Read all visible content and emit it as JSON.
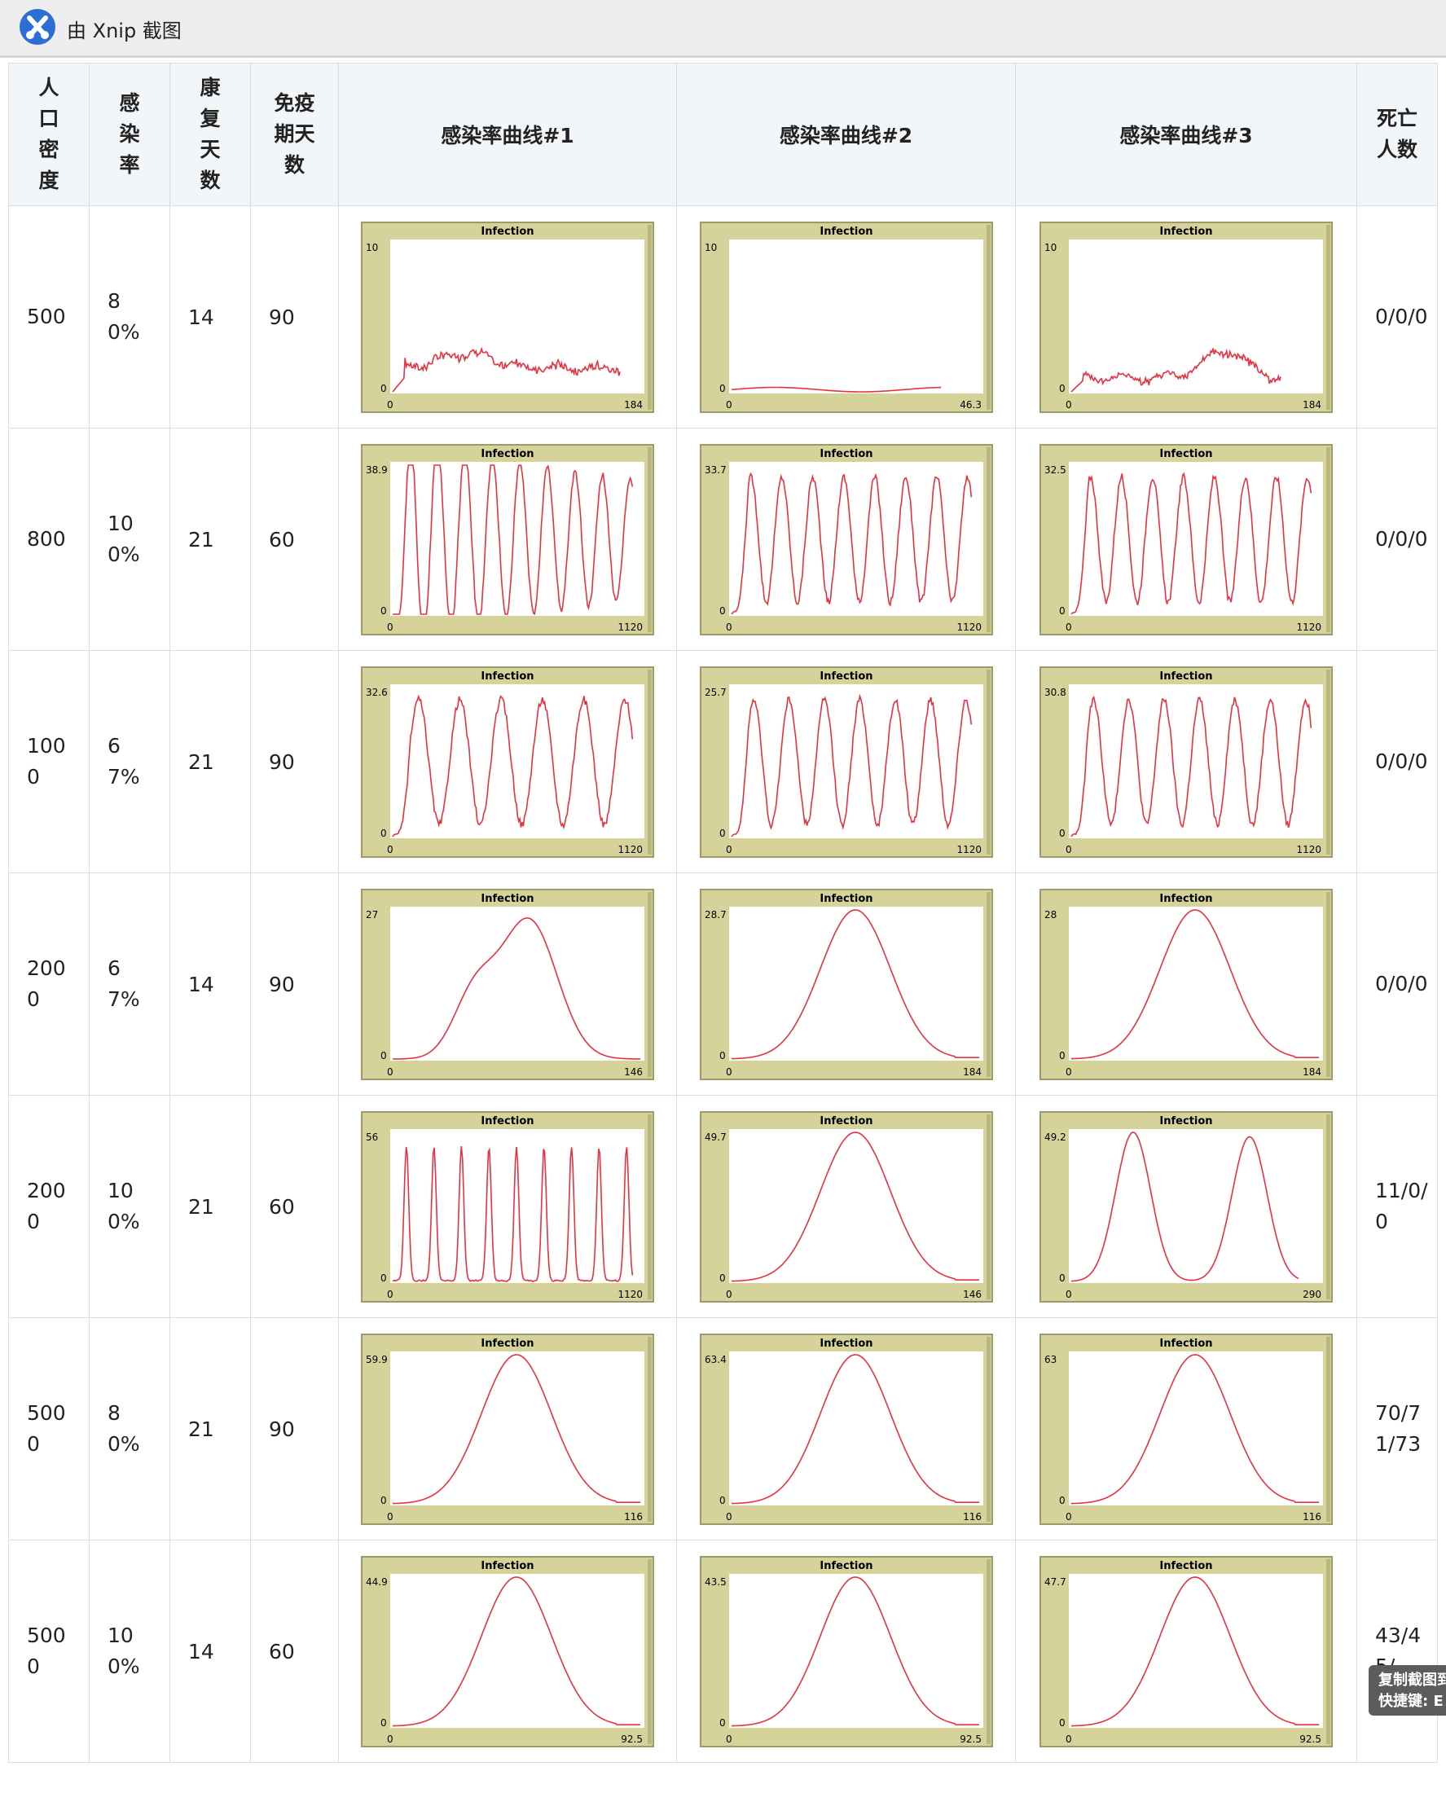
{
  "app": {
    "title": "由 Xnip 截图",
    "icon": "xnip-logo-icon"
  },
  "table": {
    "headers": {
      "density": "人口密度",
      "rate": "感染率",
      "recover": "康复天数",
      "immune": "免疫期天数",
      "curve1": "感染率曲线#1",
      "curve2": "感染率曲线#2",
      "curve3": "感染率曲线#3",
      "deaths": "死亡人数"
    },
    "rows": [
      {
        "density": "500",
        "rate": "80%",
        "recover": "14",
        "immune": "90",
        "deaths": "0/0/0"
      },
      {
        "density": "800",
        "rate": "100%",
        "recover": "21",
        "immune": "60",
        "deaths": "0/0/0"
      },
      {
        "density": "1000",
        "rate": "67%",
        "recover": "21",
        "immune": "90",
        "deaths": "0/0/0"
      },
      {
        "density": "2000",
        "rate": "67%",
        "recover": "14",
        "immune": "90",
        "deaths": "0/0/0"
      },
      {
        "density": "2000",
        "rate": "100%",
        "recover": "21",
        "immune": "60",
        "deaths": "11/0/0"
      },
      {
        "density": "5000",
        "rate": "80%",
        "recover": "21",
        "immune": "90",
        "deaths": "70/71/73"
      },
      {
        "density": "5000",
        "rate": "100%",
        "recover": "14",
        "immune": "60",
        "deaths": "43/45/"
      }
    ]
  },
  "chart_data": [
    {
      "type": "line",
      "title": "Infection",
      "ylim": [
        0,
        10
      ],
      "xlim": [
        0,
        184
      ],
      "shape": "noisy-low",
      "peak": 2.5
    },
    {
      "type": "line",
      "title": "Infection",
      "ylim": [
        0,
        10
      ],
      "xlim": [
        0,
        46.3
      ],
      "shape": "flat",
      "peak": 0.3
    },
    {
      "type": "line",
      "title": "Infection",
      "ylim": [
        0,
        10
      ],
      "xlim": [
        0,
        184
      ],
      "shape": "noisy-low2",
      "peak": 2.8
    },
    {
      "type": "line",
      "title": "Infection",
      "ylim": [
        0,
        38.9
      ],
      "xlim": [
        0,
        1120
      ],
      "shape": "osc-damped",
      "peaks": 9
    },
    {
      "type": "line",
      "title": "Infection",
      "ylim": [
        0,
        33.7
      ],
      "xlim": [
        0,
        1120
      ],
      "shape": "osc",
      "peaks": 8
    },
    {
      "type": "line",
      "title": "Infection",
      "ylim": [
        0,
        32.5
      ],
      "xlim": [
        0,
        1120
      ],
      "shape": "osc",
      "peaks": 8
    },
    {
      "type": "line",
      "title": "Infection",
      "ylim": [
        0,
        32.6
      ],
      "xlim": [
        0,
        1120
      ],
      "shape": "osc",
      "peaks": 6
    },
    {
      "type": "line",
      "title": "Infection",
      "ylim": [
        0,
        25.7
      ],
      "xlim": [
        0,
        1120
      ],
      "shape": "osc",
      "peaks": 7
    },
    {
      "type": "line",
      "title": "Infection",
      "ylim": [
        0,
        30.8
      ],
      "xlim": [
        0,
        1120
      ],
      "shape": "osc",
      "peaks": 7
    },
    {
      "type": "line",
      "title": "Infection",
      "ylim": [
        0,
        27
      ],
      "xlim": [
        0,
        146
      ],
      "shape": "bell-shoulder",
      "peak": 27
    },
    {
      "type": "line",
      "title": "Infection",
      "ylim": [
        0,
        28.7
      ],
      "xlim": [
        0,
        184
      ],
      "shape": "bell",
      "peak": 28.7
    },
    {
      "type": "line",
      "title": "Infection",
      "ylim": [
        0,
        28
      ],
      "xlim": [
        0,
        184
      ],
      "shape": "bell",
      "peak": 28
    },
    {
      "type": "line",
      "title": "Infection",
      "ylim": [
        0,
        56
      ],
      "xlim": [
        0,
        1120
      ],
      "shape": "spikes",
      "peaks": 9
    },
    {
      "type": "line",
      "title": "Infection",
      "ylim": [
        0,
        49.7
      ],
      "xlim": [
        0,
        146
      ],
      "shape": "bell",
      "peak": 49.7
    },
    {
      "type": "line",
      "title": "Infection",
      "ylim": [
        0,
        49.2
      ],
      "xlim": [
        0,
        290
      ],
      "shape": "double",
      "peaks": 2
    },
    {
      "type": "line",
      "title": "Infection",
      "ylim": [
        0,
        59.9
      ],
      "xlim": [
        0,
        116
      ],
      "shape": "bell",
      "peak": 59.9
    },
    {
      "type": "line",
      "title": "Infection",
      "ylim": [
        0,
        63.4
      ],
      "xlim": [
        0,
        116
      ],
      "shape": "bell",
      "peak": 63.4
    },
    {
      "type": "line",
      "title": "Infection",
      "ylim": [
        0,
        63
      ],
      "xlim": [
        0,
        116
      ],
      "shape": "bell",
      "peak": 63
    },
    {
      "type": "line",
      "title": "Infection",
      "ylim": [
        0,
        44.9
      ],
      "xlim": [
        0,
        92.5
      ],
      "shape": "bell",
      "peak": 44.9
    },
    {
      "type": "line",
      "title": "Infection",
      "ylim": [
        0,
        43.5
      ],
      "xlim": [
        0,
        92.5
      ],
      "shape": "bell",
      "peak": 43.5
    },
    {
      "type": "line",
      "title": "Infection",
      "ylim": [
        0,
        47.7
      ],
      "xlim": [
        0,
        92.5
      ],
      "shape": "bell",
      "peak": 47.7
    }
  ],
  "tooltip": {
    "line1": "复制截图到",
    "line2": "快捷键: E"
  }
}
